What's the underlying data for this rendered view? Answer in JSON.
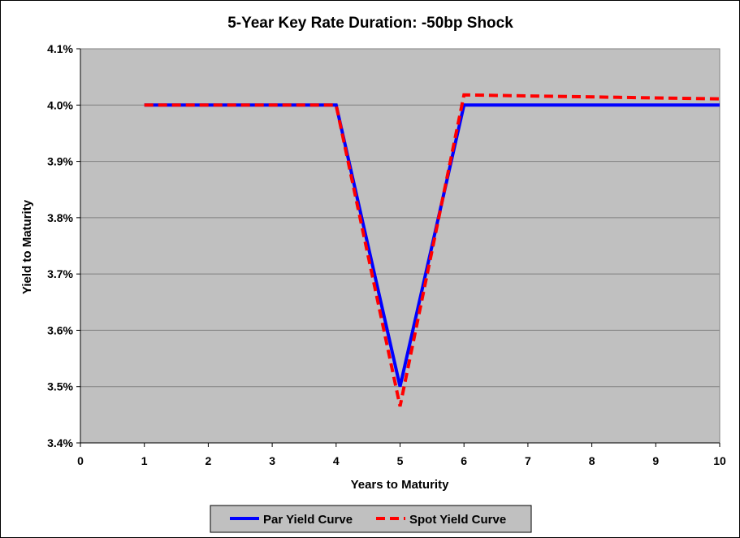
{
  "chart_data": {
    "type": "line",
    "title": "5-Year Key Rate Duration: -50bp Shock",
    "xlabel": "Years to Maturity",
    "ylabel": "Yield to Maturity",
    "xlim": [
      0,
      10
    ],
    "ylim": [
      3.4,
      4.1
    ],
    "x_ticks": [
      "0",
      "1",
      "2",
      "3",
      "4",
      "5",
      "6",
      "7",
      "8",
      "9",
      "10"
    ],
    "y_ticks": [
      "3.4%",
      "3.5%",
      "3.6%",
      "3.7%",
      "3.8%",
      "3.9%",
      "4.0%",
      "4.1%"
    ],
    "grid": "horizontal",
    "plot_background": "#c0c0c0",
    "legend_position": "bottom-center",
    "series": [
      {
        "name": "Par Yield Curve",
        "color": "#0000ff",
        "style": "solid",
        "points": [
          {
            "x": 1,
            "y": 4.0
          },
          {
            "x": 4,
            "y": 4.0
          },
          {
            "x": 5,
            "y": 3.5
          },
          {
            "x": 6,
            "y": 4.0
          },
          {
            "x": 10,
            "y": 4.0
          }
        ]
      },
      {
        "name": "Spot Yield Curve",
        "color": "#ff0000",
        "style": "dashed",
        "points": [
          {
            "x": 1,
            "y": 4.0
          },
          {
            "x": 4,
            "y": 4.0
          },
          {
            "x": 5,
            "y": 3.465
          },
          {
            "x": 6,
            "y": 4.018
          },
          {
            "x": 10,
            "y": 4.011
          }
        ]
      }
    ]
  }
}
